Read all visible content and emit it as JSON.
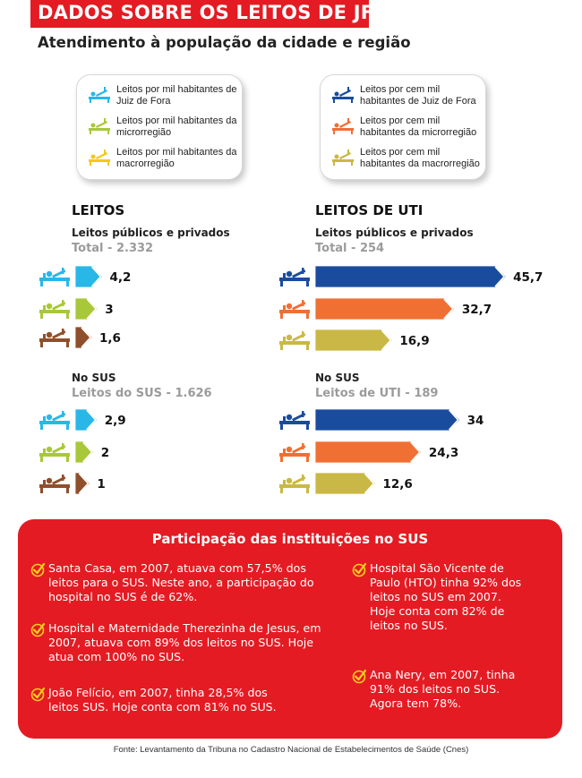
{
  "header": {
    "title": "DADOS SOBRE OS LEITOS DE JF",
    "subtitle": "Atendimento à população da cidade e região"
  },
  "legend_left": [
    {
      "text": "Leitos por mil habitantes de Juiz de Fora",
      "color": "#29b7e8",
      "icon": "bed-icon"
    },
    {
      "text": "Leitos por mil habitantes da microrregião",
      "color": "#a8c83a",
      "icon": "bed-icon"
    },
    {
      "text": "Leitos por mil habitantes da macrorregião",
      "color": "#f4c81a",
      "icon": "bed-icon"
    }
  ],
  "legend_right": [
    {
      "text": "Leitos por cem mil habitantes de Juiz de Fora",
      "color": "#1a4c9e",
      "icon": "bed-icon"
    },
    {
      "text": "Leitos por cem mil habitantes da microrregião",
      "color": "#f07033",
      "icon": "bed-icon"
    },
    {
      "text": "Leitos por cem mil habitantes da macrorregião",
      "color": "#c9b845",
      "icon": "bed-icon"
    }
  ],
  "sections": {
    "leitos": {
      "heading": "LEITOS",
      "group1_label": "Leitos públicos e privados",
      "group1_total": "Total - 2.332",
      "group2_label": "No SUS",
      "group2_total": "Leitos do SUS - 1.626"
    },
    "uti": {
      "heading": "LEITOS DE UTI",
      "group1_label": "Leitos públicos e privados",
      "group1_total": "Total - 254",
      "group2_label": "No SUS",
      "group2_total": "Leitos de UTI - 189"
    }
  },
  "chart_data": [
    {
      "type": "bar",
      "orientation": "horizontal",
      "title": "LEITOS",
      "subtitle": "Leitos públicos e privados",
      "categories": [
        "Juiz de Fora",
        "Microrregião",
        "Macrorregião"
      ],
      "values": [
        4.2,
        3,
        1.6
      ],
      "labels": [
        "4,2",
        "3",
        "1,6"
      ],
      "colors": [
        "#29b7e8",
        "#a8c83a",
        "#8f4f2c"
      ]
    },
    {
      "type": "bar",
      "orientation": "horizontal",
      "title": "LEITOS",
      "subtitle": "No SUS",
      "categories": [
        "Juiz de Fora",
        "Microrregião",
        "Macrorregião"
      ],
      "values": [
        2.9,
        2,
        1
      ],
      "labels": [
        "2,9",
        "2",
        "1"
      ],
      "colors": [
        "#29b7e8",
        "#a8c83a",
        "#8f4f2c"
      ]
    },
    {
      "type": "bar",
      "orientation": "horizontal",
      "title": "LEITOS DE UTI",
      "subtitle": "Leitos públicos e privados",
      "categories": [
        "Juiz de Fora",
        "Microrregião",
        "Macrorregião"
      ],
      "values": [
        45.7,
        32.7,
        16.9
      ],
      "labels": [
        "45,7",
        "32,7",
        "16,9"
      ],
      "colors": [
        "#1a4c9e",
        "#f07033",
        "#c9b845"
      ]
    },
    {
      "type": "bar",
      "orientation": "horizontal",
      "title": "LEITOS DE UTI",
      "subtitle": "No SUS",
      "categories": [
        "Juiz de Fora",
        "Microrregião",
        "Macrorregião"
      ],
      "values": [
        34,
        24.3,
        12.6
      ],
      "labels": [
        "34",
        "24,3",
        "12,6"
      ],
      "colors": [
        "#1a4c9e",
        "#f07033",
        "#c9b845"
      ]
    }
  ],
  "sus_box": {
    "title": "Participação das instituições no SUS",
    "items_left": [
      "Santa Casa, em 2007, atuava com 57,5% dos leitos para o SUS. Neste ano, a participação do hospital no SUS é de 62%.",
      "Hospital e Maternidade Therezinha de Jesus, em 2007, atuava com 89% dos leitos no SUS. Hoje atua com 100% no SUS.",
      "João Felício, em 2007, tinha 28,5% dos leitos SUS. Hoje conta com 81% no SUS."
    ],
    "items_right": [
      "Hospital São Vicente de Paulo (HTO) tinha 92% dos leitos no SUS em 2007. Hoje conta com 82% de leitos no SUS.",
      "Ana Nery, em 2007, tinha 91% dos leitos no SUS. Agora tem 78%."
    ]
  },
  "footer": {
    "source": "Fonte: Levantamento da Tribuna no Cadastro Nacional de Estabelecimentos de Saúde (Cnes)"
  }
}
